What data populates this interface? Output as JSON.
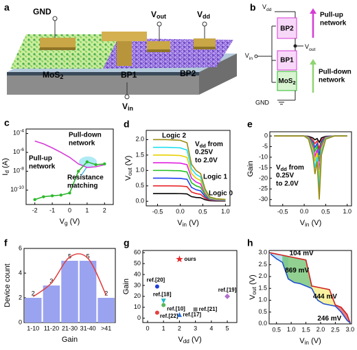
{
  "panel_a": {
    "label": "a",
    "gnd": "GND",
    "vout": {
      "main": "V",
      "sub": "out"
    },
    "vdd": {
      "main": "V",
      "sub": "dd"
    },
    "mos2": {
      "main": "MoS",
      "sub": "2"
    },
    "bp1": "BP1",
    "bp2": "BP2",
    "vin": {
      "main": "V",
      "sub": "in"
    }
  },
  "panel_b": {
    "label": "b",
    "vdd": {
      "main": "V",
      "sub": "dd"
    },
    "bp2": "BP2",
    "pull_up": [
      "Pull-up",
      "network"
    ],
    "vout": {
      "main": "V",
      "sub": "out"
    },
    "vin": {
      "main": "V",
      "sub": "in"
    },
    "bp1": "BP1",
    "mos2": {
      "main": "MoS",
      "sub": "2"
    },
    "pull_down": [
      "Pull-down",
      "network"
    ],
    "gnd": "GND"
  },
  "chart_data": [
    {
      "panel": "c",
      "type": "line",
      "log_y": true,
      "x_label": {
        "main": "V",
        "sub": "g",
        "rest": " (V)"
      },
      "y_label": {
        "main": "I",
        "sub": "d",
        "rest": " (A)"
      },
      "x": [
        -2,
        -1.5,
        -1,
        -0.5,
        0,
        0.5,
        1,
        1.5,
        2
      ],
      "series": [
        {
          "color": "#d63ad6",
          "values": [
            1.6e-05,
            8e-06,
            3e-06,
            1e-06,
            3e-07,
            6e-08,
            2.5e-08,
            3e-08,
            5e-08
          ]
        },
        {
          "color": "#2db82d",
          "markers": true,
          "values": [
            1e-11,
            2e-11,
            2.5e-11,
            3e-11,
            5e-11,
            1e-08,
            1e-07,
            5e-08,
            6e-08
          ]
        }
      ],
      "xlim": [
        -2.5,
        2.5
      ],
      "xticks": [
        -2,
        -1,
        0,
        1,
        2
      ],
      "ylim": [
        3e-12,
        0.0003
      ],
      "yticks": [
        {
          "value": 1e-10,
          "label": "10",
          "sup": "-10"
        },
        {
          "value": 1e-08,
          "label": "10",
          "sup": "-8"
        },
        {
          "value": 1e-06,
          "label": "10",
          "sup": "-6"
        },
        {
          "value": 0.0001,
          "label": "10",
          "sup": "-4"
        }
      ],
      "annotations": [
        {
          "lines": [
            "Pull-down",
            "network"
          ],
          "color": "#2db82d"
        },
        {
          "lines": [
            "Pull-up",
            "network"
          ],
          "color": "#d63ad6"
        },
        {
          "lines": [
            "Resistance",
            "matching"
          ],
          "color": "#2aa8dc"
        }
      ]
    },
    {
      "panel": "d",
      "type": "line",
      "x_label": {
        "main": "V",
        "sub": "in",
        "rest": " (V)"
      },
      "y_label": {
        "main": "V",
        "sub": "out",
        "rest": " (V)"
      },
      "x": [
        -0.6,
        -0.3,
        0,
        0.15,
        0.25,
        0.35,
        0.45,
        0.55,
        0.65,
        0.8,
        1.0
      ],
      "series": [
        {
          "color": "#000000",
          "values": [
            0.25,
            0.25,
            0.248,
            0.238,
            0.15,
            0.125,
            0.113,
            0.05,
            0.018,
            0.01,
            0.008
          ]
        },
        {
          "color": "#e8262a",
          "values": [
            0.5,
            0.5,
            0.495,
            0.475,
            0.3,
            0.25,
            0.225,
            0.1,
            0.035,
            0.02,
            0.015
          ]
        },
        {
          "color": "#1f3ff0",
          "values": [
            0.75,
            0.75,
            0.743,
            0.713,
            0.45,
            0.375,
            0.338,
            0.15,
            0.053,
            0.03,
            0.023
          ]
        },
        {
          "color": "#20c020",
          "values": [
            1,
            1,
            0.99,
            0.95,
            0.6,
            0.5,
            0.45,
            0.2,
            0.07,
            0.04,
            0.03
          ]
        },
        {
          "color": "#e020e0",
          "values": [
            1.25,
            1.25,
            1.238,
            1.188,
            0.75,
            0.625,
            0.563,
            0.25,
            0.088,
            0.05,
            0.038
          ]
        },
        {
          "color": "#e8d000",
          "values": [
            1.5,
            1.5,
            1.485,
            1.425,
            0.9,
            0.75,
            0.675,
            0.3,
            0.105,
            0.06,
            0.045
          ]
        },
        {
          "color": "#20e0f0",
          "values": [
            1.75,
            1.75,
            1.733,
            1.663,
            1.05,
            0.875,
            0.788,
            0.35,
            0.123,
            0.07,
            0.053
          ]
        },
        {
          "color": "#9a8a10",
          "values": [
            2,
            2,
            1.98,
            1.9,
            1.2,
            1,
            0.9,
            0.4,
            0.14,
            0.08,
            0.06
          ]
        }
      ],
      "xlim": [
        -0.75,
        1.1
      ],
      "xticks": [
        -0.5,
        {
          "value": 0,
          "label": "0.0"
        },
        0.5,
        {
          "value": 1,
          "label": "1.0"
        }
      ],
      "ylim": [
        -0.15,
        2.3
      ],
      "yticks": [
        {
          "value": 0,
          "label": "0.0"
        },
        0.5,
        {
          "value": 1,
          "label": "1.0"
        },
        1.5,
        {
          "value": 2,
          "label": "2.0"
        }
      ],
      "annotations": [
        {
          "lines": [
            "Logic 2"
          ],
          "color": "#e02020"
        },
        {
          "lines": [
            "Logic 1"
          ],
          "color": "#e02020"
        },
        {
          "lines": [
            "Logic 0"
          ],
          "color": "#e02020"
        },
        {
          "lines": [
            {
              "main": "V",
              "sub": "dd",
              "rest": " from"
            },
            "0.25V",
            "to 2.0V"
          ],
          "color": "#000000"
        }
      ]
    },
    {
      "panel": "e",
      "type": "line",
      "x_label": {
        "main": "V",
        "sub": "in",
        "rest": " (V)"
      },
      "y_label": "Gain",
      "x": [
        -0.7,
        -0.3,
        0,
        0.1,
        0.2,
        0.25,
        0.3,
        0.35,
        0.4,
        0.5,
        0.7,
        1.0
      ],
      "series": [
        {
          "color": "#000000",
          "values": [
            0,
            0,
            0,
            -0.15,
            -0.9,
            -1.8,
            -1.2,
            -3,
            -0.9,
            -0.15,
            0,
            0
          ]
        },
        {
          "color": "#e8262a",
          "values": [
            0,
            0,
            0,
            -0.3,
            -1.8,
            -3.6,
            -2.4,
            -6,
            -1.8,
            -0.3,
            0,
            0
          ]
        },
        {
          "color": "#1f3ff0",
          "values": [
            0,
            0,
            0,
            -0.45,
            -2.7,
            -5.4,
            -3.6,
            -9,
            -2.7,
            -0.45,
            0,
            0
          ]
        },
        {
          "color": "#20c020",
          "values": [
            0,
            0,
            0,
            -0.6,
            -3.6,
            -7.2,
            -4.8,
            -12,
            -3.6,
            -0.6,
            0,
            0
          ]
        },
        {
          "color": "#e020e0",
          "values": [
            0,
            0,
            0,
            -0.8,
            -4.8,
            -9.6,
            -6.4,
            -16,
            -4.8,
            -0.8,
            0,
            0
          ]
        },
        {
          "color": "#e8d000",
          "values": [
            0,
            0,
            0,
            -1,
            -6,
            -12,
            -8,
            -20,
            -6,
            -1,
            0,
            0
          ]
        },
        {
          "color": "#20e0f0",
          "values": [
            0,
            0,
            0,
            -1.25,
            -7.5,
            -15,
            -10,
            -25,
            -7.5,
            -1.25,
            0,
            0
          ]
        },
        {
          "color": "#9a8a10",
          "values": [
            0,
            0,
            0,
            -1.5,
            -9,
            -18,
            -12,
            -30,
            -9,
            -1.5,
            0,
            0
          ]
        }
      ],
      "xlim": [
        -0.8,
        1.1
      ],
      "xticks": [
        -0.5,
        {
          "value": 0,
          "label": "0.0"
        },
        0.5,
        {
          "value": 1,
          "label": "1.0"
        }
      ],
      "ylim": [
        -33,
        2
      ],
      "yticks": [
        0,
        -5,
        -10,
        -15,
        -20,
        -25,
        -30
      ],
      "annotations": [
        {
          "lines": [
            {
              "main": "V",
              "sub": "dd",
              "rest": " from"
            },
            "0.25V",
            "to 2.0V"
          ],
          "color": "#000000"
        }
      ]
    },
    {
      "panel": "f",
      "type": "bar",
      "x_label": "Gain",
      "y_label": "Device count",
      "categories": [
        "1-10",
        "11-20",
        "21-30",
        "31-40",
        ">41"
      ],
      "values": [
        2,
        3,
        5,
        5,
        2
      ],
      "color": "#9aa3f0",
      "fit": {
        "color": "#e03a3a",
        "values": [
          2.1,
          3.2,
          5.3,
          5.2,
          2.2
        ]
      },
      "ylim": [
        0,
        6
      ],
      "yticks": [
        0,
        2,
        4,
        6
      ]
    },
    {
      "panel": "g",
      "type": "scatter",
      "x_label": {
        "main": "V",
        "sub": "dd",
        "rest": " (V)"
      },
      "y_label": "Gain",
      "series": [
        {
          "name": "ours",
          "color": "#e8262a",
          "marker": "star",
          "x": [
            2
          ],
          "values": [
            54
          ]
        },
        {
          "name": "ref.[20]",
          "color": "#1f3fd8",
          "marker": "circle",
          "x": [
            0.6
          ],
          "values": [
            29
          ]
        },
        {
          "name": "ref.[18]",
          "color": "#20b8c8",
          "marker": "triangle-down",
          "x": [
            1
          ],
          "values": [
            16
          ]
        },
        {
          "name": "ref.[10]",
          "color": "#5cb85c",
          "marker": "circle",
          "x": [
            1
          ],
          "values": [
            12
          ]
        },
        {
          "name": "ref.[22]",
          "color": "#e84040",
          "marker": "circle",
          "x": [
            0.6
          ],
          "values": [
            5
          ]
        },
        {
          "name": "ref.[17]",
          "color": "#2a6fd8",
          "marker": "triangle",
          "x": [
            2
          ],
          "values": [
            3
          ]
        },
        {
          "name": "ref.[21]",
          "color": "#808080",
          "marker": "square",
          "x": [
            3
          ],
          "values": [
            8
          ]
        },
        {
          "name": "ref.[19]",
          "color": "#b070d0",
          "marker": "diamond",
          "x": [
            5
          ],
          "values": [
            20
          ]
        }
      ],
      "xlim": [
        -0.3,
        5.6
      ],
      "xticks": [
        0,
        1,
        2,
        3,
        4,
        5
      ],
      "ylim": [
        -4,
        62
      ],
      "yticks": [
        0,
        10,
        20,
        30,
        40,
        50,
        60
      ]
    },
    {
      "panel": "h",
      "type": "line",
      "x_label": {
        "main": "V",
        "sub": "in",
        "rest": " (V)"
      },
      "y_label": {
        "main": "V",
        "sub": "out",
        "rest": " (V)"
      },
      "x": [
        0.3,
        0.5,
        0.7,
        0.9,
        1.1,
        1.3,
        1.5,
        1.7,
        1.9,
        2.1,
        2.3,
        2.5,
        2.7,
        2.9,
        3.0
      ],
      "series": [
        {
          "color": "#d02020",
          "values": [
            3.0,
            2.95,
            2.9,
            2.85,
            2.8,
            2.75,
            2.7,
            1.6,
            1.55,
            1.5,
            1.45,
            0.8,
            0.7,
            0.4,
            0.05
          ]
        },
        {
          "color": "#2050d0",
          "values": [
            2.95,
            2.75,
            2.6,
            1.9,
            1.75,
            1.7,
            1.6,
            1.5,
            1.0,
            0.85,
            0.8,
            0.75,
            0.5,
            0.15,
            0.05
          ]
        }
      ],
      "loops": [
        {
          "label": "104 mV",
          "color": "#a8d8f0"
        },
        {
          "label": "869 mV",
          "color": "#6cc06c"
        },
        {
          "label": "444 mV",
          "color": "#f5ee80"
        },
        {
          "label": "246 mV",
          "color": "#e05a5a"
        }
      ],
      "xlim": [
        0.25,
        3.05
      ],
      "xticks": [
        0.5,
        {
          "value": 1,
          "label": "1.0"
        },
        1.5,
        {
          "value": 2,
          "label": "2.0"
        },
        2.5,
        {
          "value": 3,
          "label": "3.0"
        }
      ],
      "ylim": [
        0,
        3.1
      ],
      "yticks": [
        {
          "value": 0,
          "label": "0.0"
        },
        0.5,
        {
          "value": 1,
          "label": "1.0"
        },
        1.5,
        {
          "value": 2,
          "label": "2.0"
        },
        2.5,
        {
          "value": 3,
          "label": "3.0"
        }
      ]
    }
  ]
}
